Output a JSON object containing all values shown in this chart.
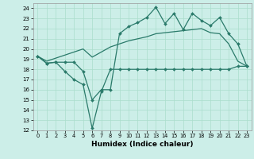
{
  "xlabel": "Humidex (Indice chaleur)",
  "xlim": [
    -0.5,
    23.5
  ],
  "ylim": [
    12,
    24.5
  ],
  "yticks": [
    12,
    13,
    14,
    15,
    16,
    17,
    18,
    19,
    20,
    21,
    22,
    23,
    24
  ],
  "xticks": [
    0,
    1,
    2,
    3,
    4,
    5,
    6,
    7,
    8,
    9,
    10,
    11,
    12,
    13,
    14,
    15,
    16,
    17,
    18,
    19,
    20,
    21,
    22,
    23
  ],
  "bg_color": "#cceee8",
  "grid_color": "#aaddcc",
  "line_color": "#2a7a6a",
  "line1_x": [
    0,
    1,
    2,
    3,
    4,
    5,
    6,
    7,
    8,
    9,
    10,
    11,
    12,
    13,
    14,
    15,
    16,
    17,
    18,
    19,
    20,
    21,
    22,
    23
  ],
  "line1_y": [
    19.3,
    18.6,
    18.7,
    18.7,
    18.7,
    17.8,
    15.0,
    16.0,
    16.0,
    21.5,
    22.2,
    22.6,
    23.1,
    24.1,
    22.5,
    23.5,
    21.9,
    23.5,
    22.8,
    22.3,
    23.1,
    21.5,
    20.5,
    18.3
  ],
  "line2_x": [
    0,
    1,
    2,
    3,
    4,
    5,
    6,
    7,
    8,
    9,
    10,
    11,
    12,
    13,
    14,
    15,
    16,
    17,
    18,
    19,
    20,
    21,
    22,
    23
  ],
  "line2_y": [
    19.3,
    18.6,
    18.7,
    17.8,
    17.0,
    16.5,
    12.2,
    15.8,
    18.0,
    18.0,
    18.0,
    18.0,
    18.0,
    18.0,
    18.0,
    18.0,
    18.0,
    18.0,
    18.0,
    18.0,
    18.0,
    18.0,
    18.3,
    18.3
  ],
  "line3_x": [
    0,
    1,
    2,
    3,
    4,
    5,
    6,
    7,
    8,
    9,
    10,
    11,
    12,
    13,
    14,
    15,
    16,
    17,
    18,
    19,
    20,
    21,
    22,
    23
  ],
  "line3_y": [
    19.3,
    18.8,
    19.1,
    19.4,
    19.7,
    20.0,
    19.2,
    19.7,
    20.2,
    20.5,
    20.8,
    21.0,
    21.2,
    21.5,
    21.6,
    21.7,
    21.8,
    21.9,
    22.0,
    21.6,
    21.5,
    20.5,
    18.8,
    18.3
  ]
}
